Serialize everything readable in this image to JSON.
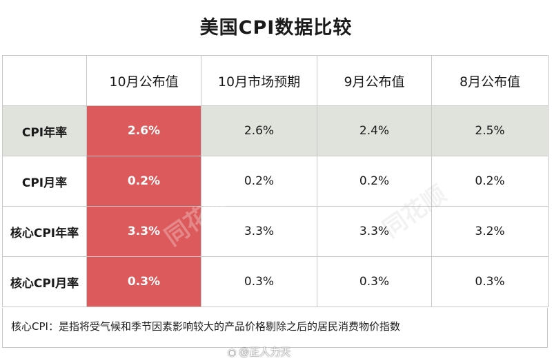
{
  "chart_data": {
    "type": "table",
    "title": "美国CPI数据比较",
    "columns": [
      "",
      "10月公布值",
      "10月市场预期",
      "9月公布值",
      "8月公布值"
    ],
    "rows": [
      {
        "label": "CPI年率",
        "values": [
          "2.6%",
          "2.6%",
          "2.4%",
          "2.5%"
        ]
      },
      {
        "label": "CPI月率",
        "values": [
          "0.2%",
          "0.2%",
          "0.2%",
          "0.2%"
        ]
      },
      {
        "label": "核心CPI年率",
        "values": [
          "3.3%",
          "3.3%",
          "3.3%",
          "3.2%"
        ]
      },
      {
        "label": "核心CPI月率",
        "values": [
          "0.3%",
          "0.3%",
          "0.3%",
          "0.3%"
        ]
      }
    ],
    "footnote": "核心CPI：是指将受气候和季节因素影响较大的产品价格剔除之后的居民消费物价指数"
  },
  "watermark": "同花顺",
  "credit": "@正人力天",
  "colors": {
    "highlight_col": "#dc5a5c",
    "highlight_row": "#dfe3dc",
    "border": "#c8c8c8"
  }
}
